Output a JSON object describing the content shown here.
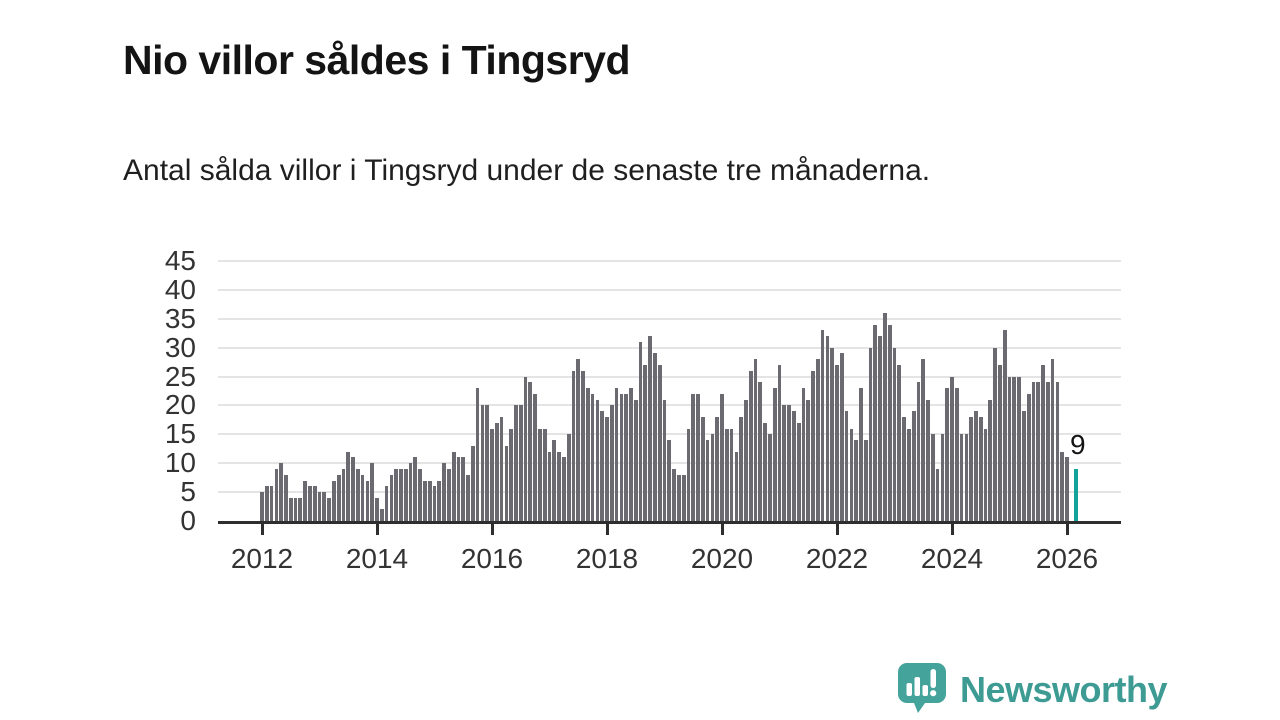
{
  "header": {
    "title": "Nio villor såldes i Tingsryd",
    "subtitle": "Antal sålda villor i Tingsryd under de senaste tre månaderna."
  },
  "chart_data": {
    "type": "bar",
    "title": "Nio villor såldes i Tingsryd",
    "subtitle": "Antal sålda villor i Tingsryd under de senaste tre månaderna.",
    "x_unit": "month",
    "x_start": "2012-01",
    "x_end": "2026-02",
    "x_tick_labels": [
      "2012",
      "2014",
      "2016",
      "2018",
      "2020",
      "2022",
      "2024",
      "2026"
    ],
    "y_ticks": [
      0,
      5,
      10,
      15,
      20,
      25,
      30,
      35,
      40,
      45
    ],
    "ylim": [
      0,
      45
    ],
    "grid": "horizontal",
    "legend": "none",
    "values": [
      5,
      6,
      6,
      9,
      10,
      8,
      4,
      4,
      4,
      7,
      6,
      6,
      5,
      5,
      4,
      7,
      8,
      9,
      12,
      11,
      9,
      8,
      7,
      10,
      4,
      2,
      6,
      8,
      9,
      9,
      9,
      10,
      11,
      9,
      7,
      7,
      6,
      7,
      10,
      9,
      12,
      11,
      11,
      8,
      13,
      23,
      20,
      20,
      16,
      17,
      18,
      13,
      16,
      20,
      20,
      25,
      24,
      22,
      16,
      16,
      12,
      14,
      12,
      11,
      15,
      26,
      28,
      26,
      23,
      22,
      21,
      19,
      18,
      20,
      23,
      22,
      22,
      23,
      21,
      31,
      27,
      32,
      29,
      27,
      21,
      14,
      9,
      8,
      8,
      16,
      22,
      22,
      18,
      14,
      15,
      18,
      22,
      16,
      16,
      12,
      18,
      21,
      26,
      28,
      24,
      17,
      15,
      23,
      27,
      20,
      20,
      19,
      17,
      23,
      21,
      26,
      28,
      33,
      32,
      30,
      27,
      29,
      19,
      16,
      14,
      23,
      14,
      30,
      34,
      32,
      36,
      34,
      30,
      27,
      18,
      16,
      19,
      24,
      28,
      21,
      15,
      9,
      15,
      23,
      25,
      23,
      15,
      15,
      18,
      19,
      18,
      16,
      21,
      30,
      27,
      33,
      25,
      25,
      25,
      19,
      22,
      24,
      24,
      27,
      24,
      28,
      24,
      12,
      11,
      9
    ],
    "highlight": {
      "index_from_end": 0,
      "value": 9,
      "label": "9"
    },
    "colors": {
      "bar": "#6b6a70",
      "highlight": "#14a29b",
      "grid": "#e4e4e4",
      "axis": "#2e2e2e",
      "tick_text": "#333333",
      "label_text": "#141414"
    }
  },
  "annotation": {
    "latest_value_label": "9"
  },
  "footer": {
    "brand": "Newsworthy",
    "brand_color": "#3d9b94"
  }
}
